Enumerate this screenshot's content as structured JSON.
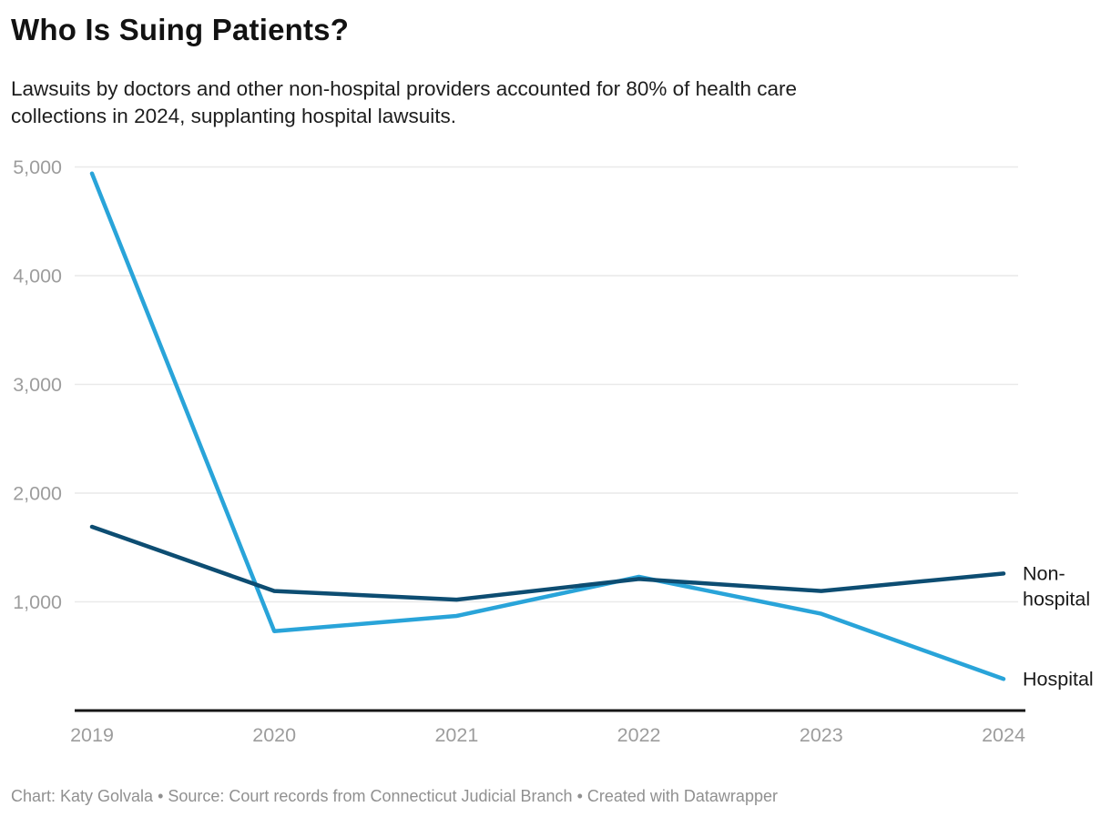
{
  "header": {
    "title": "Who Is Suing Patients?",
    "subtitle_lines": [
      "Lawsuits by doctors and other non-hospital providers accounted for 80% of health care",
      "collections in 2024, supplanting hospital lawsuits."
    ]
  },
  "footer": {
    "credit": "Chart: Katy Golvala • Source: Court records from Connecticut Judicial Branch • Created with Datawrapper"
  },
  "chart_data": {
    "type": "line",
    "title": "Who Is Suing Patients?",
    "categories": [
      "2019",
      "2020",
      "2021",
      "2022",
      "2023",
      "2024"
    ],
    "series": [
      {
        "name": "Hospital",
        "label_lines": [
          "Hospital"
        ],
        "color": "#29a4d9",
        "values": [
          4940,
          730,
          870,
          1230,
          890,
          290
        ]
      },
      {
        "name": "Non-hospital",
        "label_lines": [
          "Non-",
          "hospital"
        ],
        "color": "#0d4d72",
        "values": [
          1690,
          1100,
          1020,
          1210,
          1100,
          1260
        ]
      }
    ],
    "yticks": [
      {
        "value": 1000,
        "label": "1,000"
      },
      {
        "value": 2000,
        "label": "2,000"
      },
      {
        "value": 3000,
        "label": "3,000"
      },
      {
        "value": 4000,
        "label": "4,000"
      },
      {
        "value": 5000,
        "label": "5,000"
      }
    ],
    "ylim": [
      0,
      5000
    ],
    "xlabel": "",
    "ylabel": "",
    "grid": true,
    "legend_position": "right-of-line-ends",
    "colors": {
      "grid": "#e9e9e9",
      "axis": "#161616",
      "tick_text": "#9d9d9d",
      "series_label_text": "#1a1a1a"
    }
  }
}
